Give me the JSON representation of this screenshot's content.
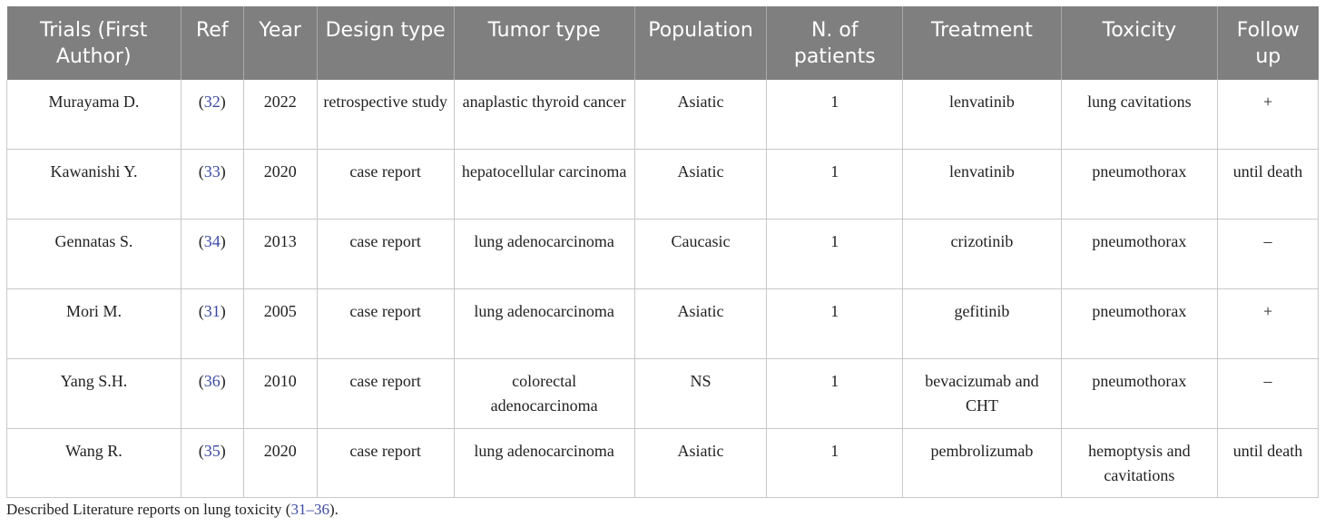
{
  "table": {
    "headers": [
      {
        "id": "trials",
        "label": "Trials (First Author)"
      },
      {
        "id": "ref",
        "label": "Ref"
      },
      {
        "id": "year",
        "label": "Year"
      },
      {
        "id": "design",
        "label": "Design type"
      },
      {
        "id": "tumor",
        "label": "Tumor type"
      },
      {
        "id": "population",
        "label": "Population"
      },
      {
        "id": "npatients",
        "label": "N. of patients"
      },
      {
        "id": "treatment",
        "label": "Treatment"
      },
      {
        "id": "toxicity",
        "label": "Toxicity"
      },
      {
        "id": "followup",
        "label": "Follow up"
      }
    ],
    "rows": [
      {
        "author": "Murayama D.",
        "ref_open": "(",
        "ref": "32",
        "ref_close": ")",
        "year": "2022",
        "design": "retrospective study",
        "tumor": "anaplastic thyroid cancer",
        "population": "Asiatic",
        "patients": "1",
        "treatment": "lenvatinib",
        "toxicity": "lung cavitations",
        "followup": "+"
      },
      {
        "author": "Kawanishi Y.",
        "ref_open": "(",
        "ref": "33",
        "ref_close": ")",
        "year": "2020",
        "design": "case report",
        "tumor": "hepatocellular carcinoma",
        "population": "Asiatic",
        "patients": "1",
        "treatment": "lenvatinib",
        "toxicity": "pneumothorax",
        "followup": "until death"
      },
      {
        "author": "Gennatas S.",
        "ref_open": "(",
        "ref": "34",
        "ref_close": ")",
        "year": "2013",
        "design": "case report",
        "tumor": "lung adenocarcinoma",
        "population": "Caucasic",
        "patients": "1",
        "treatment": "crizotinib",
        "toxicity": "pneumothorax",
        "followup": "–"
      },
      {
        "author": "Mori M.",
        "ref_open": "(",
        "ref": "31",
        "ref_close": ")",
        "year": "2005",
        "design": "case report",
        "tumor": "lung adenocarcinoma",
        "population": "Asiatic",
        "patients": "1",
        "treatment": "gefitinib",
        "toxicity": "pneumothorax",
        "followup": "+"
      },
      {
        "author": "Yang S.H.",
        "ref_open": "(",
        "ref": "36",
        "ref_close": ")",
        "year": "2010",
        "design": "case report",
        "tumor": "colorectal adenocarcinoma",
        "population": "NS",
        "patients": "1",
        "treatment": "bevacizumab and CHT",
        "toxicity": "pneumothorax",
        "followup": "–"
      },
      {
        "author": "Wang R.",
        "ref_open": "(",
        "ref": "35",
        "ref_close": ")",
        "year": "2020",
        "design": "case report",
        "tumor": "lung adenocarcinoma",
        "population": "Asiatic",
        "patients": "1",
        "treatment": "pembrolizumab",
        "toxicity": "hemoptysis and cavitations",
        "followup": "until death"
      }
    ]
  },
  "caption": {
    "prefix": "Described Literature reports on lung toxicity (",
    "link": "31–36",
    "suffix": ")."
  },
  "colors": {
    "header_bg": "#7f7f7f",
    "header_text": "#ffffff",
    "link": "#3b4aa3",
    "grid": "#c8c8c8"
  }
}
